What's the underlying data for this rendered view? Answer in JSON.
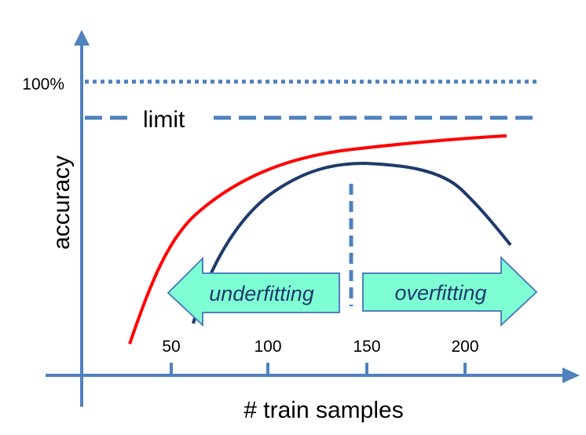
{
  "labels": {
    "y_axis_title": "accuracy",
    "x_axis_title": "# train samples",
    "hundred_percent": "100%",
    "limit": "limit",
    "underfitting": "underfitting",
    "overfitting": "overfitting"
  },
  "x_ticks": [
    "50",
    "100",
    "150",
    "200"
  ],
  "colors": {
    "axis": "#4f81bd",
    "reference_lines": "#4f81bd",
    "training_curve": "#ff0000",
    "test_curve": "#1f3a6b",
    "arrow_fill": "#7fffd4",
    "arrow_stroke": "#4f81bd"
  }
}
